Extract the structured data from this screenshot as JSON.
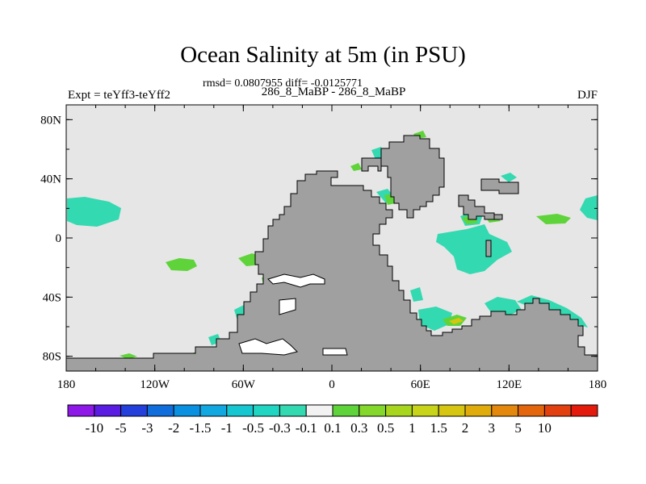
{
  "title": "Ocean Salinity at 5m (in PSU)",
  "stats": "rmsd= 0.0807955 diff= -0.0125771",
  "expt": "Expt = teYff3-teYff2",
  "cases": "286_8_MaBP - 286_8_MaBP",
  "season": "DJF",
  "axes": {
    "x_ticks": [
      {
        "label": "180",
        "value": -180
      },
      {
        "label": "120W",
        "value": -120
      },
      {
        "label": "60W",
        "value": -60
      },
      {
        "label": "0",
        "value": 0
      },
      {
        "label": "60E",
        "value": 60
      },
      {
        "label": "120E",
        "value": 120
      },
      {
        "label": "180",
        "value": 180
      }
    ],
    "y_ticks": [
      {
        "label": "80N",
        "value": 80
      },
      {
        "label": "40N",
        "value": 40
      },
      {
        "label": "0",
        "value": 0
      },
      {
        "label": "40S",
        "value": -40
      },
      {
        "label": "80S",
        "value": -80
      }
    ],
    "lon_range": [
      -180,
      180
    ],
    "lat_range": [
      -90,
      90
    ]
  },
  "colors": {
    "ocean": "#e6e6e6",
    "land": "#a0a0a0",
    "coast": "#000000",
    "neg_small": "#33d9b0",
    "neg_med": "#16c7d2",
    "neg_large": "#0a90e0",
    "pos_small": "#5fd33a",
    "pos_med": "#a8d61e",
    "pos_large": "#d6c611"
  },
  "colorbar": {
    "colors": [
      "#8e18e8",
      "#5a1be3",
      "#2340dc",
      "#0f6edb",
      "#0a90e0",
      "#11a8e2",
      "#16c7d2",
      "#20d6c2",
      "#33d9b0",
      "#f2f2f2",
      "#5fd33a",
      "#83d82b",
      "#a8d61e",
      "#c8d419",
      "#d6c611",
      "#e0ac0c",
      "#e3880c",
      "#e3660c",
      "#e34010",
      "#e31a0c"
    ],
    "labels": [
      "-10",
      "-5",
      "-3",
      "-2",
      "-1.5",
      "-1",
      "-0.5",
      "-0.3",
      "-0.1",
      "0.1",
      "0.3",
      "0.5",
      "1",
      "1.5",
      "2",
      "3",
      "5",
      "10"
    ]
  }
}
